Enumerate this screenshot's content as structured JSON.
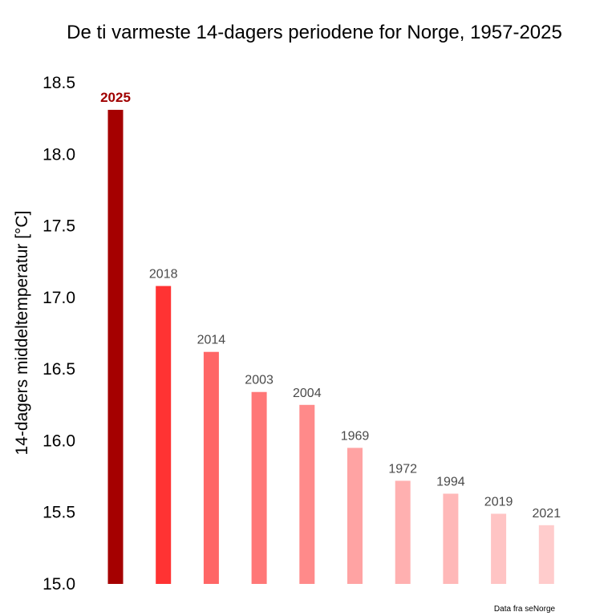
{
  "chart_data": {
    "type": "bar",
    "title": "De ti varmeste 14-dagers periodene for Norge, 1957-2025",
    "xlabel": "",
    "ylabel": "14-dagers middeltemperatur [°C]",
    "ylim": [
      15.0,
      18.5
    ],
    "yticks": [
      "15.0",
      "15.5",
      "16.0",
      "16.5",
      "17.0",
      "17.5",
      "18.0",
      "18.5"
    ],
    "grid": false,
    "categories": [
      "2025",
      "2018",
      "2014",
      "2003",
      "2004",
      "1969",
      "1972",
      "1994",
      "2019",
      "2021"
    ],
    "values": [
      18.31,
      17.08,
      16.62,
      16.34,
      16.25,
      15.95,
      15.72,
      15.63,
      15.49,
      15.41
    ],
    "colors": [
      "#a50000",
      "#ff3333",
      "#ff6666",
      "#ff7777",
      "#ff8a8a",
      "#ffa3a3",
      "#ffb0b0",
      "#ffb8b8",
      "#ffc4c4",
      "#ffcccc"
    ],
    "highlight_label_color": "#a00000",
    "label_color": "#4a4a4a",
    "source_note": "Data fra seNorge"
  }
}
